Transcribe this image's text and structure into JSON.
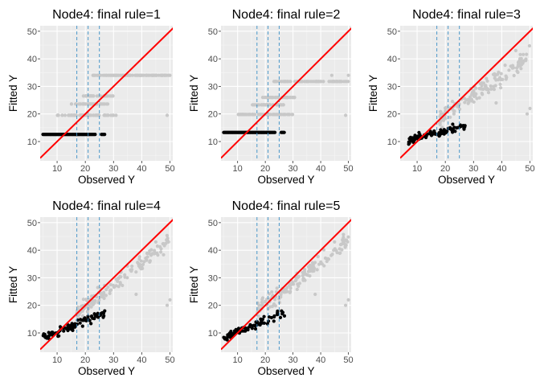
{
  "colors": {
    "panel_bg": "#EBEBEB",
    "grid_major": "#FFFFFF",
    "grid_minor": "#F5F5F5",
    "other_points": "#C8C8C8",
    "node_points": "#000000",
    "identity_line": "#FF0000",
    "vline": "#3A8FC6",
    "tick_label": "#4D4D4D",
    "axis_title": "#000000"
  },
  "chart_data": [
    {
      "type": "scatter",
      "title": "Node4: final rule=1",
      "xlabel": "Observed Y",
      "ylabel": "Fitted Y",
      "xlim": [
        4,
        51
      ],
      "ylim": [
        3,
        52
      ],
      "xticks": [
        10,
        20,
        30,
        40,
        50
      ],
      "yticks": [
        10,
        20,
        30,
        40,
        50
      ],
      "grid": true,
      "identity_line": true,
      "vlines": [
        17,
        21,
        25
      ],
      "levels": [
        {
          "y": 12.6,
          "x_from": 6,
          "x_to": 22
        },
        {
          "y": 19.5,
          "x_from": 10,
          "x_to": 31
        },
        {
          "y": 23.6,
          "x_from": 15,
          "x_to": 28
        },
        {
          "y": 26.5,
          "x_from": 19,
          "x_to": 30
        },
        {
          "y": 34.0,
          "x_from": 22,
          "x_to": 50
        }
      ],
      "node": {
        "kind": "flat",
        "y": 12.6,
        "x_from": 5,
        "x_to": 27
      }
    },
    {
      "type": "scatter",
      "title": "Node4: final rule=2",
      "xlabel": "Observed Y",
      "ylabel": "Fitted Y",
      "xlim": [
        4,
        51
      ],
      "ylim": [
        3,
        52
      ],
      "xticks": [
        10,
        20,
        30,
        40,
        50
      ],
      "yticks": [
        10,
        20,
        30,
        40,
        50
      ],
      "grid": true,
      "identity_line": true,
      "vlines": [
        17,
        21,
        25
      ],
      "levels": [
        {
          "y": 13.3,
          "x_from": 6,
          "x_to": 22
        },
        {
          "y": 19.8,
          "x_from": 10,
          "x_to": 30
        },
        {
          "y": 23.3,
          "x_from": 15,
          "x_to": 27
        },
        {
          "y": 26.0,
          "x_from": 19,
          "x_to": 31
        },
        {
          "y": 31.8,
          "x_from": 23,
          "x_to": 50
        }
      ],
      "node": {
        "kind": "flat",
        "y": 13.3,
        "x_from": 5,
        "x_to": 27
      }
    },
    {
      "type": "scatter",
      "title": "Node4: final rule=3",
      "xlabel": "Observed Y",
      "ylabel": "Fitted Y",
      "xlim": [
        4,
        51
      ],
      "ylim": [
        3,
        52
      ],
      "xticks": [
        10,
        20,
        30,
        40,
        50
      ],
      "yticks": [
        10,
        20,
        30,
        40,
        50
      ],
      "grid": true,
      "identity_line": true,
      "vlines": [
        17,
        21,
        25
      ],
      "cloud": {
        "intercept": 5.2,
        "slope": 0.72,
        "x_from": 18,
        "x_to": 50
      },
      "node": {
        "kind": "slope",
        "intercept": 8.8,
        "slope": 0.25,
        "x_from": 7,
        "x_to": 27
      }
    },
    {
      "type": "scatter",
      "title": "Node4: final rule=4",
      "xlabel": "Observed Y",
      "ylabel": "Fitted Y",
      "xlim": [
        4,
        51
      ],
      "ylim": [
        3,
        52
      ],
      "xticks": [
        10,
        20,
        30,
        40,
        50
      ],
      "yticks": [
        10,
        20,
        30,
        40,
        50
      ],
      "grid": true,
      "identity_line": true,
      "vlines": [
        17,
        21,
        25
      ],
      "cloud": {
        "intercept": 3.5,
        "slope": 0.8,
        "x_from": 17,
        "x_to": 50
      },
      "node": {
        "kind": "slope",
        "intercept": 6.0,
        "slope": 0.42,
        "x_from": 5,
        "x_to": 27
      }
    },
    {
      "type": "scatter",
      "title": "Node4: final rule=5",
      "xlabel": "Observed Y",
      "ylabel": "Fitted Y",
      "xlim": [
        4,
        51
      ],
      "ylim": [
        3,
        52
      ],
      "xticks": [
        10,
        20,
        30,
        40,
        50
      ],
      "yticks": [
        10,
        20,
        30,
        40,
        50
      ],
      "grid": true,
      "identity_line": true,
      "vlines": [
        17,
        21,
        25
      ],
      "cloud": {
        "intercept": 3.8,
        "slope": 0.8,
        "x_from": 17,
        "x_to": 50
      },
      "node": {
        "kind": "slope",
        "intercept": 6.2,
        "slope": 0.42,
        "x_from": 5,
        "x_to": 27
      }
    }
  ]
}
